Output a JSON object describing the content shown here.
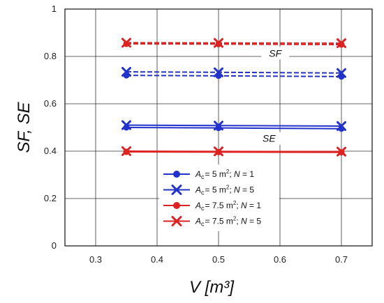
{
  "chart_data": {
    "type": "line",
    "xlabel": "V  [m³]",
    "ylabel": "SF, SE",
    "xlim": [
      0.25,
      0.75
    ],
    "ylim": [
      0,
      1
    ],
    "x_ticks": [
      0.3,
      0.4,
      0.5,
      0.6,
      0.7
    ],
    "y_ticks": [
      0,
      0.2,
      0.4,
      0.6,
      0.8,
      1
    ],
    "x_tick_labels": [
      "0.3",
      "0.4",
      "0.5",
      "0.6",
      "0.7"
    ],
    "y_tick_labels": [
      "0",
      "0.2",
      "0.4",
      "0.6",
      "0.8",
      "1"
    ],
    "grid": true,
    "legend_position": "bottom-center",
    "annotations": [
      {
        "text": "SF",
        "x": 0.59,
        "y": 0.805
      },
      {
        "text": "SE",
        "x": 0.58,
        "y": 0.445
      }
    ],
    "series": [
      {
        "name": "Ac = 5 m²; N = 1",
        "metric": "SF",
        "color": "#2233cc",
        "marker": "circle",
        "style": "dashed",
        "x": [
          0.35,
          0.5,
          0.7
        ],
        "y": [
          0.72,
          0.718,
          0.715
        ]
      },
      {
        "name": "Ac = 5 m²; N = 5",
        "metric": "SF",
        "color": "#2233cc",
        "marker": "x",
        "style": "dashed",
        "x": [
          0.35,
          0.5,
          0.7
        ],
        "y": [
          0.735,
          0.733,
          0.73
        ]
      },
      {
        "name": "Ac = 7.5 m²; N = 1",
        "metric": "SF",
        "color": "#dd2222",
        "marker": "circle",
        "style": "dashed",
        "x": [
          0.35,
          0.5,
          0.7
        ],
        "y": [
          0.853,
          0.852,
          0.85
        ]
      },
      {
        "name": "Ac = 7.5 m²; N = 5",
        "metric": "SF",
        "color": "#dd2222",
        "marker": "x",
        "style": "dashed",
        "x": [
          0.35,
          0.5,
          0.7
        ],
        "y": [
          0.858,
          0.857,
          0.856
        ]
      },
      {
        "name": "Ac = 5 m²; N = 1",
        "metric": "SE",
        "color": "#2233cc",
        "marker": "circle",
        "style": "solid",
        "x": [
          0.35,
          0.5,
          0.7
        ],
        "y": [
          0.5,
          0.498,
          0.495
        ]
      },
      {
        "name": "Ac = 5 m²; N = 5",
        "metric": "SE",
        "color": "#2233cc",
        "marker": "x",
        "style": "solid",
        "x": [
          0.35,
          0.5,
          0.7
        ],
        "y": [
          0.51,
          0.508,
          0.506
        ]
      },
      {
        "name": "Ac = 7.5 m²; N = 1",
        "metric": "SE",
        "color": "#dd2222",
        "marker": "circle",
        "style": "solid",
        "x": [
          0.35,
          0.5,
          0.7
        ],
        "y": [
          0.397,
          0.396,
          0.395
        ]
      },
      {
        "name": "Ac = 7.5 m²; N = 5",
        "metric": "SE",
        "color": "#dd2222",
        "marker": "x",
        "style": "solid",
        "x": [
          0.35,
          0.5,
          0.7
        ],
        "y": [
          0.4,
          0.399,
          0.398
        ]
      }
    ],
    "legend": [
      {
        "color": "#2233cc",
        "marker": "circle",
        "ac_label": "A",
        "ac_sub": "c",
        "ac_value": "= 5 m",
        "n_label": "N",
        "n_value": "= 1"
      },
      {
        "color": "#2233cc",
        "marker": "x",
        "ac_label": "A",
        "ac_sub": "c",
        "ac_value": "= 5 m",
        "n_label": "N",
        "n_value": "= 5"
      },
      {
        "color": "#dd2222",
        "marker": "circle",
        "ac_label": "A",
        "ac_sub": "c",
        "ac_value": "= 7.5 m",
        "n_label": "N",
        "n_value": "= 1"
      },
      {
        "color": "#dd2222",
        "marker": "x",
        "ac_label": "A",
        "ac_sub": "c",
        "ac_value": "= 7.5 m",
        "n_label": "N",
        "n_value": "= 5"
      }
    ]
  }
}
